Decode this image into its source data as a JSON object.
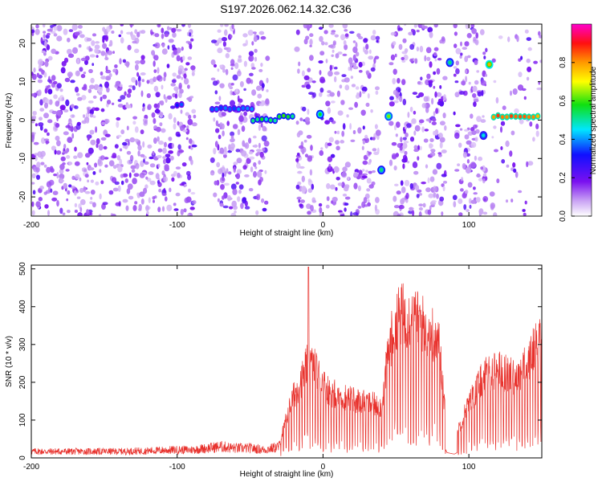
{
  "title": "S197.2026.062.14.32.C36",
  "chart_data": [
    {
      "type": "heatmap",
      "name": "spectrogram",
      "xlabel": "Height of straight line (km)",
      "ylabel": "Frequency (Hz)",
      "xlim": [
        -200,
        150
      ],
      "ylim": [
        -25,
        25
      ],
      "xticks": [
        -200,
        -100,
        0,
        100
      ],
      "xtick_labels": [
        "-200",
        "-100",
        "0",
        "100"
      ],
      "yticks": [
        -20,
        -10,
        0,
        10,
        20
      ],
      "ytick_labels": [
        "-20",
        "-10",
        "0",
        "10",
        "20"
      ],
      "colorbar": {
        "label": "Normalized spectral amplitude",
        "range": [
          0,
          1
        ],
        "ticks": [
          0.0,
          0.2,
          0.4,
          0.6,
          0.8
        ],
        "tick_labels": [
          "0.0",
          "0.2",
          "0.4",
          "0.6",
          "0.8"
        ],
        "colormap": "rainbow (white-violet-blue-cyan-green-yellow-orange-red-magenta)"
      },
      "blank_gaps_km": [
        [
          -88,
          -76
        ],
        [
          -38,
          -18
        ],
        [
          -6,
          -2
        ],
        [
          0,
          2
        ],
        [
          38,
          46
        ],
        [
          84,
          90
        ],
        [
          112,
          116
        ]
      ],
      "features": [
        {
          "label": "line segment",
          "x_start": -100,
          "x_end": -95,
          "freq": 4,
          "amplitude": 0.35
        },
        {
          "label": "line segment",
          "x_start": -76,
          "x_end": -48,
          "freq": 3,
          "amplitude": 0.4
        },
        {
          "label": "line segment",
          "x_start": -48,
          "x_end": -30,
          "freq": 0,
          "amplitude": 0.55
        },
        {
          "label": "line segment",
          "x_start": -30,
          "x_end": -18,
          "freq": 1,
          "amplitude": 0.6
        },
        {
          "label": "spot",
          "x": -2,
          "freq": 1.5,
          "amplitude": 0.55
        },
        {
          "label": "spot",
          "x": 40,
          "freq": -13,
          "amplitude": 0.5
        },
        {
          "label": "spot",
          "x": 45,
          "freq": 1,
          "amplitude": 0.6
        },
        {
          "label": "spot",
          "x": 87,
          "freq": 15,
          "amplitude": 0.5
        },
        {
          "label": "spot",
          "x": 110,
          "freq": -4,
          "amplitude": 0.45
        },
        {
          "label": "spot",
          "x": 114,
          "freq": 14.5,
          "amplitude": 0.75
        },
        {
          "label": "line segment",
          "x_start": 117,
          "x_end": 150,
          "freq": 1,
          "amplitude": 0.9
        }
      ]
    },
    {
      "type": "line",
      "name": "snr",
      "xlabel": "Height of straight line (km)",
      "ylabel": "SNR (10 * v/v)",
      "xlim": [
        -200,
        150
      ],
      "ylim": [
        0,
        510
      ],
      "xticks": [
        -200,
        -100,
        0,
        100
      ],
      "xtick_labels": [
        "-200",
        "-100",
        "0",
        "100"
      ],
      "yticks": [
        0,
        100,
        200,
        300,
        400,
        500
      ],
      "ytick_labels": [
        "0",
        "100",
        "200",
        "300",
        "400",
        "500"
      ],
      "color": "#e8312c",
      "x": [
        -200,
        -180,
        -160,
        -140,
        -120,
        -100,
        -90,
        -80,
        -70,
        -60,
        -50,
        -40,
        -30,
        -25,
        -20,
        -15,
        -10,
        -5,
        0,
        5,
        10,
        20,
        30,
        40,
        45,
        50,
        55,
        60,
        65,
        70,
        75,
        80,
        85,
        90,
        100,
        110,
        120,
        130,
        140,
        150
      ],
      "values": [
        20,
        20,
        20,
        20,
        22,
        25,
        25,
        30,
        35,
        30,
        30,
        25,
        35,
        110,
        170,
        210,
        260,
        240,
        200,
        180,
        170,
        160,
        150,
        140,
        290,
        380,
        390,
        380,
        370,
        360,
        340,
        300,
        70,
        50,
        150,
        220,
        240,
        220,
        250,
        350
      ],
      "annotations": [
        "sharp peak ~505 near x=-10",
        "dense spike train between x=-20 and x=150"
      ]
    }
  ]
}
